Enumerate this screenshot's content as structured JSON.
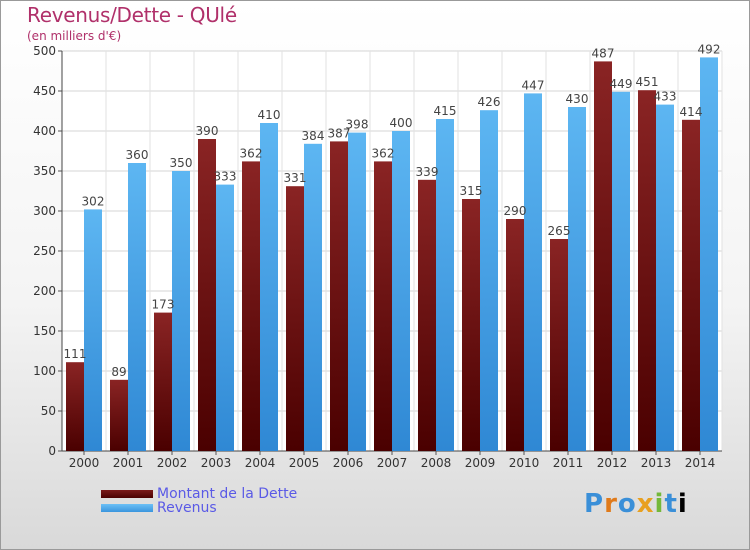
{
  "header": {
    "title": "Revenus/Dette - QUlé",
    "subtitle": "(en milliers d'€)"
  },
  "legend": {
    "debt_label": "Montant de la Dette",
    "revenue_label": "Revenus"
  },
  "logo": {
    "text": "Proxiti"
  },
  "colors": {
    "debt": "#6e1414",
    "revenue": "#4aa8ea",
    "title": "#b0306a",
    "legend_text": "#5a5ae6"
  },
  "chart_data": {
    "type": "bar",
    "title": "Revenus/Dette - QUlé",
    "subtitle": "(en milliers d'€)",
    "categories": [
      "2000",
      "2001",
      "2002",
      "2003",
      "2004",
      "2005",
      "2006",
      "2007",
      "2008",
      "2009",
      "2010",
      "2011",
      "2012",
      "2013",
      "2014"
    ],
    "series": [
      {
        "name": "Montant de la Dette",
        "values": [
          111,
          89,
          173,
          390,
          362,
          331,
          387,
          362,
          339,
          315,
          290,
          265,
          487,
          451,
          414
        ]
      },
      {
        "name": "Revenus",
        "values": [
          302,
          360,
          350,
          333,
          410,
          384,
          398,
          400,
          415,
          426,
          447,
          430,
          449,
          433,
          492
        ]
      }
    ],
    "ylim": [
      0,
      500
    ],
    "yticks": [
      0,
      50,
      100,
      150,
      200,
      250,
      300,
      350,
      400,
      450,
      500
    ],
    "grid": true,
    "legend_position": "bottom-left"
  }
}
